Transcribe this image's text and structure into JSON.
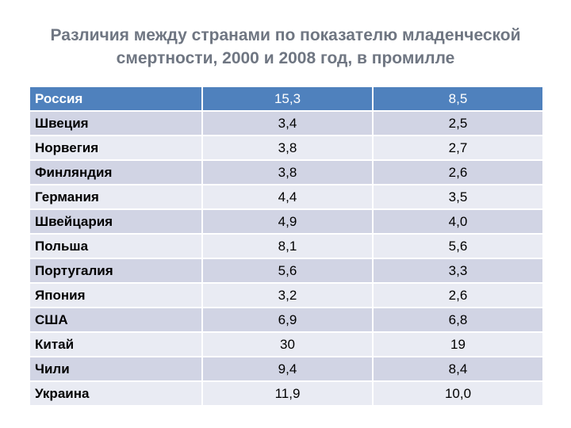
{
  "title": {
    "line1": "Различия между странами по показателю младенческой",
    "line2": "смертности, 2000 и 2008 год, в промилле"
  },
  "table": {
    "header": {
      "country": "Россия",
      "v2000": "15,3",
      "v2008": "8,5"
    },
    "rows": [
      {
        "country": "Швеция",
        "v2000": "3,4",
        "v2008": "2,5"
      },
      {
        "country": "Норвегия",
        "v2000": "3,8",
        "v2008": "2,7"
      },
      {
        "country": "Финляндия",
        "v2000": "3,8",
        "v2008": "2,6"
      },
      {
        "country": "Германия",
        "v2000": "4,4",
        "v2008": "3,5"
      },
      {
        "country": "Швейцария",
        "v2000": "4,9",
        "v2008": "4,0"
      },
      {
        "country": "Польша",
        "v2000": "8,1",
        "v2008": "5,6"
      },
      {
        "country": "Португалия",
        "v2000": "5,6",
        "v2008": "3,3"
      },
      {
        "country": "Япония",
        "v2000": "3,2",
        "v2008": "2,6"
      },
      {
        "country": "США",
        "v2000": "6,9",
        "v2008": "6,8"
      },
      {
        "country": "Китай",
        "v2000": "30",
        "v2008": "19"
      },
      {
        "country": "Чили",
        "v2000": "9,4",
        "v2008": "8,4"
      },
      {
        "country": "Украина",
        "v2000": "11,9",
        "v2008": "10,0"
      }
    ]
  },
  "colors": {
    "header_fill": "#4f81bd",
    "row_light": "#e9ebf3",
    "row_dark": "#d1d4e4",
    "title_text": "#6f7682"
  }
}
